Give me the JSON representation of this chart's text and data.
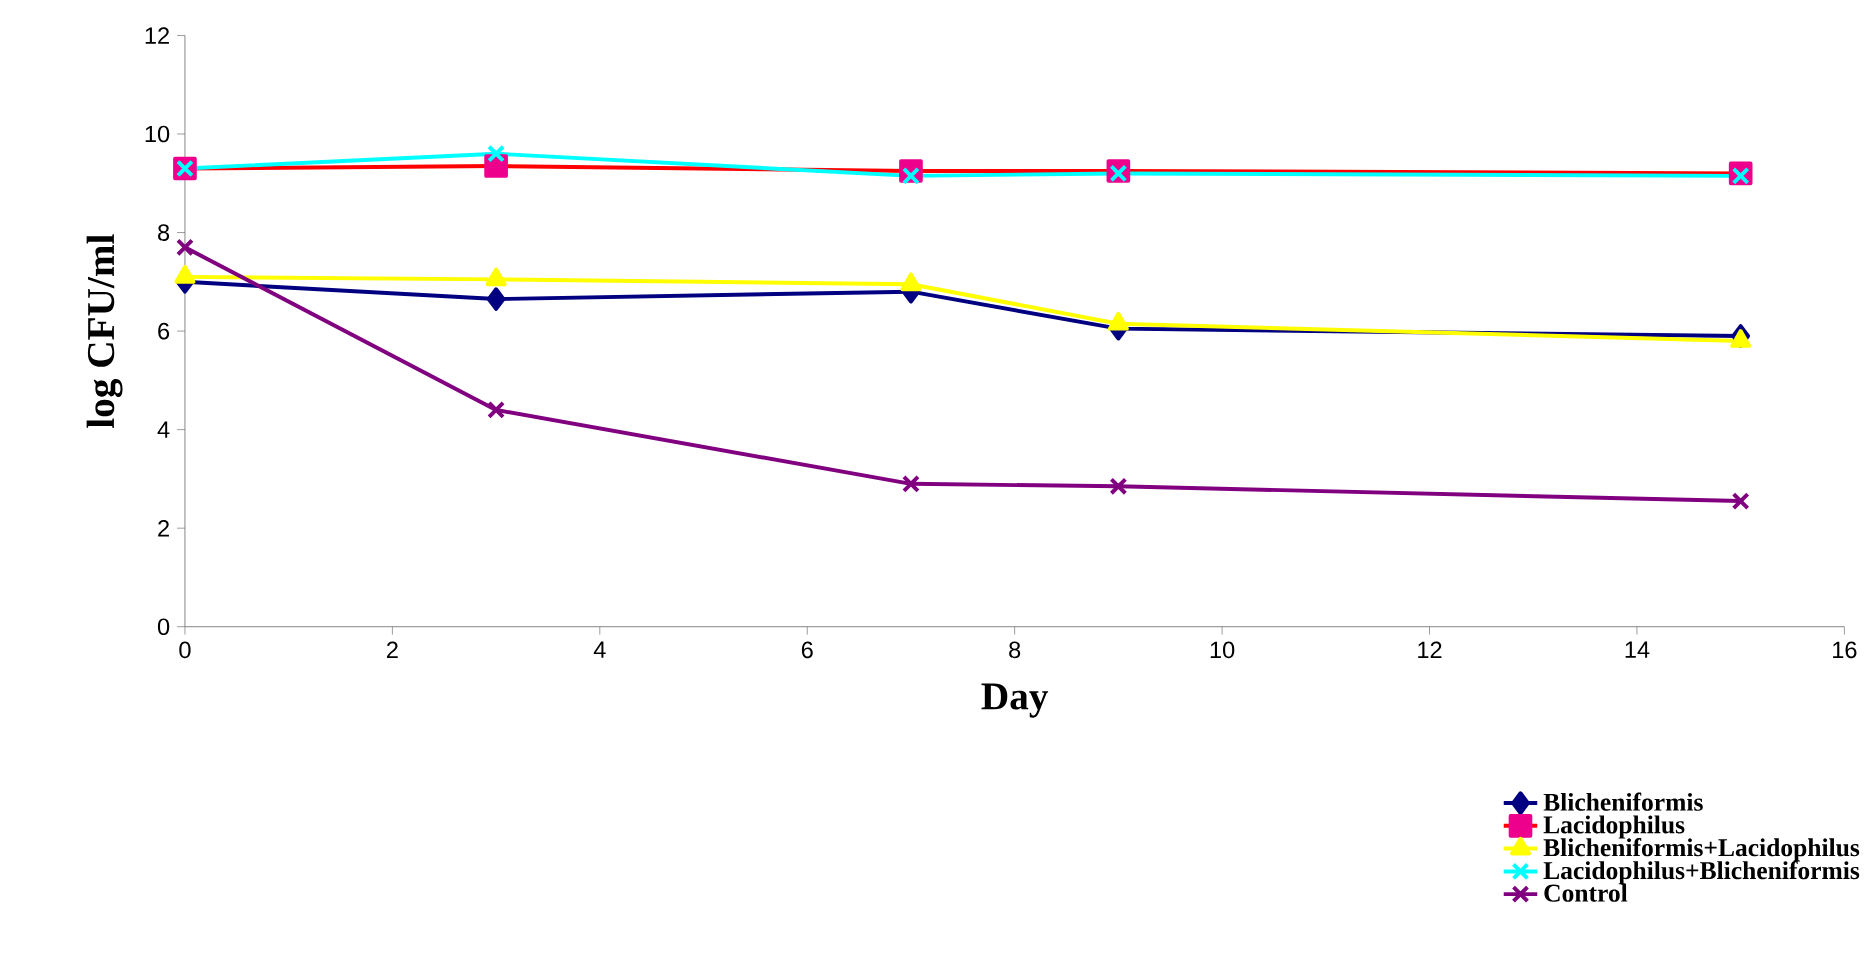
{
  "chart_data": {
    "type": "line",
    "xlabel": "Day",
    "ylabel": "log CFU/ml",
    "x": [
      0,
      3,
      7,
      9,
      15
    ],
    "xlim": [
      0,
      16
    ],
    "xticks": [
      0,
      2,
      4,
      6,
      8,
      10,
      12,
      14,
      16
    ],
    "ylim": [
      0,
      12
    ],
    "yticks": [
      0,
      2,
      4,
      6,
      8,
      10,
      12
    ],
    "legend": "bottom right",
    "grid": false,
    "series": [
      {
        "name": "Blicheniformis",
        "color": "#000080",
        "marker": "diamond",
        "values": [
          7.0,
          6.65,
          6.8,
          6.05,
          5.9
        ]
      },
      {
        "name": "Lacidophilus",
        "color": "#ff0000",
        "marker": "square",
        "values": [
          9.3,
          9.35,
          9.25,
          9.25,
          9.2
        ]
      },
      {
        "name": "Blicheniformis+Lacidophilus",
        "color": "#ffff00",
        "marker": "triangle",
        "values": [
          7.1,
          7.05,
          6.95,
          6.15,
          5.8
        ]
      },
      {
        "name": "Lacidophilus+Blicheniformis",
        "color": "#00ffff",
        "marker": "cross",
        "values": [
          9.3,
          9.6,
          9.15,
          9.2,
          9.15
        ]
      },
      {
        "name": "Control",
        "color": "#800080",
        "marker": "cross",
        "values": [
          7.7,
          4.4,
          2.9,
          2.85,
          2.55
        ]
      }
    ]
  }
}
